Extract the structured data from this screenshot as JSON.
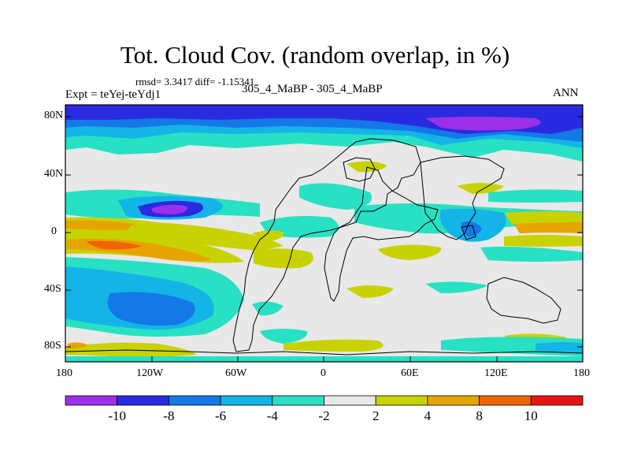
{
  "title": "Tot. Cloud Cov. (random overlap, in %)",
  "stats": "rmsd= 3.3417 diff= -1.15341",
  "experiment": "Expt = teYej-teYdj1",
  "subtitle": "305_4_MaBP - 305_4_MaBP",
  "season": "ANN",
  "axes": {
    "y_ticks": [
      "80N",
      "40N",
      "0",
      "40S",
      "80S"
    ],
    "x_ticks": [
      "180",
      "120W",
      "60W",
      "0",
      "60E",
      "120E",
      "180"
    ]
  },
  "colorbar": {
    "labels": [
      "-10",
      "-8",
      "-6",
      "-4",
      "-2",
      "2",
      "4",
      "8",
      "10"
    ],
    "colors": [
      "#9b30e8",
      "#2a2ae0",
      "#1478e6",
      "#14b4e6",
      "#28e0c4",
      "#e8e8e8",
      "#c8d200",
      "#e6a400",
      "#f06400",
      "#e81414"
    ]
  },
  "chart_data": {
    "type": "heatmap",
    "title": "Tot. Cloud Cov. (random overlap, in %)",
    "variable": "Total cloud cover difference (%)",
    "x_range": [
      -180,
      180
    ],
    "y_range": [
      -90,
      90
    ],
    "contour_levels": [
      -10,
      -8,
      -6,
      -4,
      -2,
      2,
      4,
      8,
      10
    ]
  }
}
